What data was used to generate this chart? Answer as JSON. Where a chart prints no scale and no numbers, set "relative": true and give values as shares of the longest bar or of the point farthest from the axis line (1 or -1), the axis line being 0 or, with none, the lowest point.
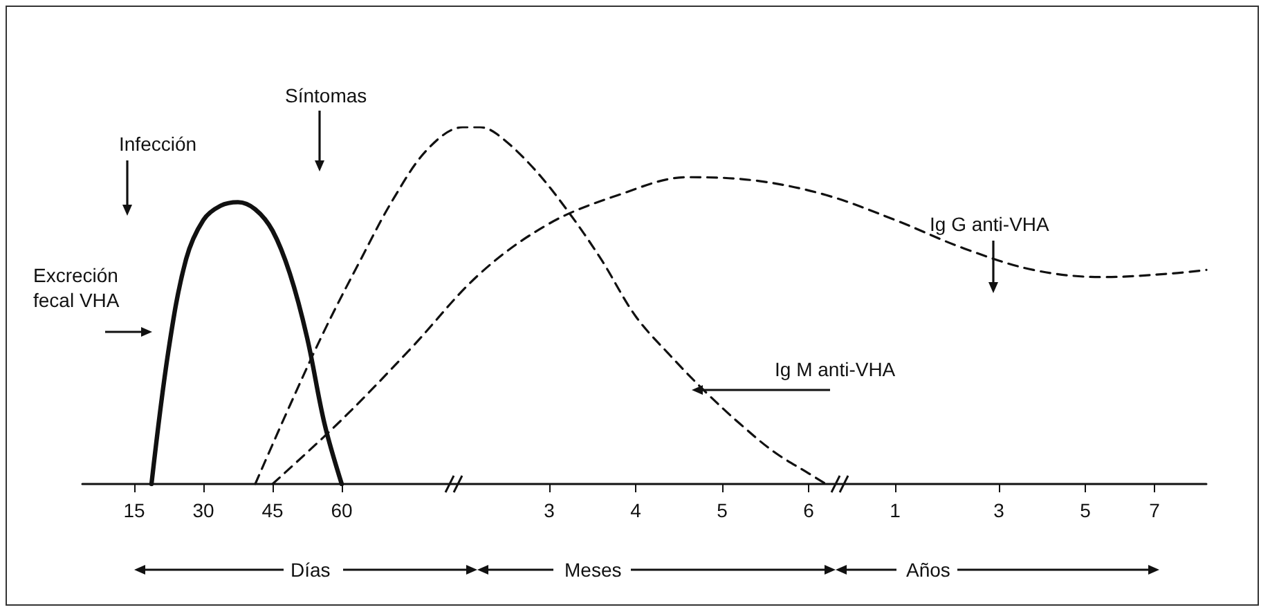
{
  "chart_data": {
    "type": "line",
    "relative": true,
    "categories": [
      null,
      null,
      null,
      "15",
      null,
      null,
      null,
      "30",
      null,
      null,
      null,
      "45",
      null,
      null,
      null,
      "60",
      null,
      null,
      null,
      null,
      null,
      null,
      null,
      null,
      null,
      null,
      null,
      "3",
      null,
      null,
      null,
      null,
      "4",
      null,
      null,
      null,
      null,
      "5",
      null,
      null,
      null,
      null,
      "6",
      null,
      null,
      null,
      null,
      "1",
      null,
      null,
      null,
      null,
      null,
      "3",
      null,
      null,
      null,
      null,
      "5",
      null,
      null,
      null,
      "7",
      null,
      null,
      null
    ],
    "series": [
      {
        "name": "Excreción fecal VHA",
        "color": "#111111",
        "line_style": "solid",
        "values": [
          null,
          null,
          null,
          null,
          0,
          0.38,
          0.63,
          0.74,
          0.78,
          0.79,
          0.77,
          0.71,
          0.59,
          0.41,
          0.17,
          0,
          null,
          null,
          null,
          null,
          null,
          null,
          null,
          null,
          null,
          null,
          null,
          null,
          null,
          null,
          null,
          null,
          null,
          null,
          null,
          null,
          null,
          null,
          null,
          null,
          null,
          null,
          null,
          null,
          null,
          null,
          null,
          null,
          null,
          null,
          null,
          null,
          null,
          null,
          null,
          null,
          null,
          null,
          null,
          null,
          null,
          null,
          null,
          null,
          null,
          null
        ]
      },
      {
        "name": "Ig M anti-VHA",
        "color": "#111111",
        "line_style": "dashed",
        "values": [
          null,
          null,
          null,
          null,
          null,
          null,
          null,
          null,
          null,
          null,
          0,
          null,
          0.22,
          null,
          0.43,
          null,
          0.62,
          null,
          0.8,
          null,
          0.94,
          null,
          1,
          1,
          0.98,
          null,
          0.89,
          null,
          0.77,
          null,
          0.63,
          null,
          0.47,
          null,
          0.36,
          null,
          0.26,
          null,
          0.17,
          null,
          0.09,
          null,
          0.03,
          0,
          null,
          null,
          null,
          null,
          null,
          null,
          null,
          null,
          null,
          null,
          null,
          null,
          null,
          null,
          null,
          null,
          null,
          null,
          null,
          null,
          null,
          null
        ]
      },
      {
        "name": "Ig G anti-VHA",
        "color": "#111111",
        "line_style": "dashed",
        "values": [
          null,
          null,
          null,
          null,
          null,
          null,
          null,
          null,
          null,
          null,
          null,
          0,
          null,
          null,
          null,
          0.18,
          null,
          null,
          null,
          0.38,
          null,
          null,
          null,
          0.59,
          null,
          null,
          null,
          0.73,
          null,
          null,
          null,
          0.81,
          null,
          null,
          null,
          0.86,
          null,
          null,
          null,
          0.85,
          null,
          null,
          null,
          0.81,
          null,
          null,
          null,
          0.74,
          null,
          null,
          null,
          0.66,
          null,
          null,
          null,
          0.6,
          null,
          null,
          null,
          0.58,
          null,
          null,
          null,
          0.59,
          null,
          0.6
        ]
      }
    ],
    "annotations": [
      "Infección",
      "Síntomas",
      "Días",
      "Meses",
      "Años"
    ],
    "grid": false,
    "legend": false,
    "marker": "none"
  }
}
